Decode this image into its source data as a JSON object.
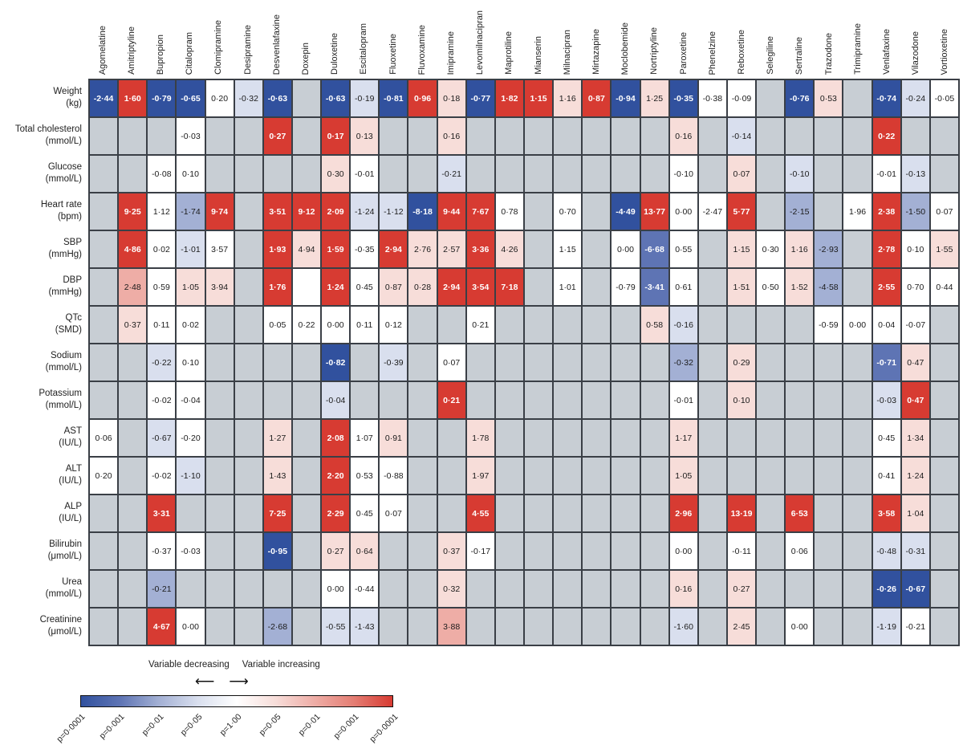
{
  "chart_data": {
    "type": "heatmap",
    "title": "",
    "columns": [
      "Agomelatine",
      "Amitriptyline",
      "Bupropion",
      "Citalopram",
      "Clomipramine",
      "Desipramine",
      "Desvenlafaxine",
      "Doxepin",
      "Duloxetine",
      "Escitalopram",
      "Fluoxetine",
      "Fluvoxamine",
      "Imipramine",
      "Levomilnacipran",
      "Maprotiline",
      "Mianserin",
      "Milnacipran",
      "Mirtazapine",
      "Moclobemide",
      "Nortriptyline",
      "Paroxetine",
      "Phenelzine",
      "Reboxetine",
      "Selegiline",
      "Sertraline",
      "Trazodone",
      "Trimipramine",
      "Venlafaxine",
      "Vilazodone",
      "Vortioxetine"
    ],
    "rows": [
      {
        "label": "Weight",
        "unit": "(kg)",
        "cells": [
          [
            "-2·44",
            -4
          ],
          [
            "1·60",
            4
          ],
          [
            "-0·79",
            -4
          ],
          [
            "-0·65",
            -4
          ],
          [
            "0·20",
            0
          ],
          [
            "-0·32",
            -1
          ],
          [
            "-0·63",
            -4
          ],
          null,
          [
            "-0·63",
            -4
          ],
          [
            "-0·19",
            -1
          ],
          [
            "-0·81",
            -4
          ],
          [
            "0·96",
            4
          ],
          [
            "0·18",
            1
          ],
          [
            "-0·77",
            -4
          ],
          [
            "1·82",
            4
          ],
          [
            "1·15",
            4
          ],
          [
            "1·16",
            1
          ],
          [
            "0·87",
            4
          ],
          [
            "-0·94",
            -4
          ],
          [
            "1·25",
            1
          ],
          [
            "-0·35",
            -4
          ],
          [
            "-0·38",
            0
          ],
          [
            "-0·09",
            0
          ],
          null,
          [
            "-0·76",
            -4
          ],
          [
            "0·53",
            1
          ],
          null,
          [
            "-0·74",
            -4
          ],
          [
            "-0·24",
            -1
          ],
          [
            "-0·05",
            0
          ]
        ]
      },
      {
        "label": "Total cholesterol",
        "unit": "(mmol/L)",
        "cells": [
          null,
          null,
          null,
          [
            "-0·03",
            0
          ],
          null,
          null,
          [
            "0·27",
            4
          ],
          null,
          [
            "0·17",
            4
          ],
          [
            "0·13",
            1
          ],
          null,
          null,
          [
            "0·16",
            1
          ],
          null,
          null,
          null,
          null,
          null,
          null,
          null,
          [
            "0·16",
            1
          ],
          null,
          [
            "-0·14",
            -1
          ],
          null,
          null,
          null,
          null,
          [
            "0·22",
            4
          ],
          null,
          null
        ]
      },
      {
        "label": "Glucose",
        "unit": "(mmol/L)",
        "cells": [
          null,
          null,
          [
            "-0·08",
            0
          ],
          [
            "0·10",
            0
          ],
          null,
          null,
          null,
          null,
          [
            "0·30",
            1
          ],
          [
            "-0·01",
            0
          ],
          null,
          null,
          [
            "-0·21",
            -1
          ],
          null,
          null,
          null,
          null,
          null,
          null,
          null,
          [
            "-0·10",
            0
          ],
          null,
          [
            "0·07",
            1
          ],
          null,
          [
            "-0·10",
            -1
          ],
          null,
          null,
          [
            "-0·01",
            0
          ],
          [
            "-0·13",
            -1
          ],
          null
        ]
      },
      {
        "label": "Heart rate",
        "unit": "(bpm)",
        "cells": [
          null,
          [
            "9·25",
            4
          ],
          [
            "1·12",
            0
          ],
          [
            "-1·74",
            -2
          ],
          [
            "9·74",
            4
          ],
          null,
          [
            "3·51",
            4
          ],
          [
            "9·12",
            4
          ],
          [
            "2·09",
            4
          ],
          [
            "-1·24",
            -1
          ],
          [
            "-1·12",
            -1
          ],
          [
            "-8·18",
            -4
          ],
          [
            "9·44",
            4
          ],
          [
            "7·67",
            4
          ],
          [
            "0·78",
            0
          ],
          null,
          [
            "0·70",
            0
          ],
          null,
          [
            "-4·49",
            -4
          ],
          [
            "13·77",
            4
          ],
          [
            "0·00",
            0
          ],
          [
            "-2·47",
            0
          ],
          [
            "5·77",
            4
          ],
          null,
          [
            "-2·15",
            -2
          ],
          null,
          [
            "1·96",
            0
          ],
          [
            "2·38",
            4
          ],
          [
            "-1·50",
            -2
          ],
          [
            "0·07",
            0
          ]
        ]
      },
      {
        "label": "SBP",
        "unit": "(mmHg)",
        "cells": [
          null,
          [
            "4·86",
            4
          ],
          [
            "0·02",
            0
          ],
          [
            "-1·01",
            -1
          ],
          [
            "3·57",
            0
          ],
          null,
          [
            "1·93",
            4
          ],
          [
            "4·94",
            1
          ],
          [
            "1·59",
            4
          ],
          [
            "-0·35",
            0
          ],
          [
            "2·94",
            4
          ],
          [
            "2·76",
            1
          ],
          [
            "2·57",
            1
          ],
          [
            "3·36",
            4
          ],
          [
            "4·26",
            1
          ],
          null,
          [
            "1·15",
            0
          ],
          null,
          [
            "0·00",
            0
          ],
          [
            "-6·68",
            -3
          ],
          [
            "0·55",
            0
          ],
          null,
          [
            "1·15",
            1
          ],
          [
            "0·30",
            0
          ],
          [
            "1·16",
            1
          ],
          [
            "-2·93",
            -2
          ],
          null,
          [
            "2·78",
            4
          ],
          [
            "0·10",
            0
          ],
          [
            "1·55",
            1
          ]
        ]
      },
      {
        "label": "DBP",
        "unit": "(mmHg)",
        "cells": [
          null,
          [
            "2·48",
            2
          ],
          [
            "0·59",
            0
          ],
          [
            "1·05",
            1
          ],
          [
            "3·94",
            1
          ],
          null,
          [
            "1·76",
            4
          ],
          [
            "",
            0
          ],
          [
            "1·24",
            4
          ],
          [
            "0·45",
            0
          ],
          [
            "0·87",
            1
          ],
          [
            "0·28",
            1
          ],
          [
            "2·94",
            4
          ],
          [
            "3·54",
            4
          ],
          [
            "7·18",
            4
          ],
          null,
          [
            "1·01",
            0
          ],
          null,
          [
            "-0·79",
            0
          ],
          [
            "-3·41",
            -3
          ],
          [
            "0·61",
            0
          ],
          null,
          [
            "1·51",
            1
          ],
          [
            "0·50",
            0
          ],
          [
            "1·52",
            1
          ],
          [
            "-4·58",
            -2
          ],
          null,
          [
            "2·55",
            4
          ],
          [
            "0·70",
            0
          ],
          [
            "0·44",
            0
          ]
        ]
      },
      {
        "label": "QTc",
        "unit": "(SMD)",
        "cells": [
          null,
          [
            "0·37",
            1
          ],
          [
            "0·11",
            0
          ],
          [
            "0·02",
            0
          ],
          null,
          null,
          [
            "0·05",
            0
          ],
          [
            "0·22",
            0
          ],
          [
            "0·00",
            0
          ],
          [
            "0·11",
            0
          ],
          [
            "0·12",
            0
          ],
          null,
          null,
          [
            "0·21",
            0
          ],
          null,
          null,
          null,
          null,
          null,
          [
            "0·58",
            1
          ],
          [
            "-0·16",
            -1
          ],
          null,
          null,
          null,
          null,
          [
            "-0·59",
            0
          ],
          [
            "0·00",
            0
          ],
          [
            "0·04",
            0
          ],
          [
            "-0·07",
            0
          ],
          null
        ]
      },
      {
        "label": "Sodium",
        "unit": "(mmol/L)",
        "cells": [
          null,
          null,
          [
            "-0·22",
            -1
          ],
          [
            "0·10",
            0
          ],
          null,
          null,
          null,
          null,
          [
            "-0·82",
            -4
          ],
          null,
          [
            "-0·39",
            -1
          ],
          null,
          [
            "0·07",
            0
          ],
          null,
          null,
          null,
          null,
          null,
          null,
          null,
          [
            "-0·32",
            -2
          ],
          null,
          [
            "0·29",
            1
          ],
          null,
          null,
          null,
          null,
          [
            "-0·71",
            -3
          ],
          [
            "0·47",
            1
          ],
          null
        ]
      },
      {
        "label": "Potassium",
        "unit": "(mmol/L)",
        "cells": [
          null,
          null,
          [
            "-0·02",
            0
          ],
          [
            "-0·04",
            0
          ],
          null,
          null,
          null,
          null,
          [
            "-0·04",
            -1
          ],
          null,
          null,
          null,
          [
            "0·21",
            4
          ],
          null,
          null,
          null,
          null,
          null,
          null,
          null,
          [
            "-0·01",
            0
          ],
          null,
          [
            "0·10",
            1
          ],
          null,
          null,
          null,
          null,
          [
            "-0·03",
            -1
          ],
          [
            "0·47",
            4
          ],
          null
        ]
      },
      {
        "label": "AST",
        "unit": "(IU/L)",
        "cells": [
          [
            "0·06",
            0
          ],
          null,
          [
            "-0·67",
            -1
          ],
          [
            "-0·20",
            0
          ],
          null,
          null,
          [
            "1·27",
            1
          ],
          null,
          [
            "2·08",
            4
          ],
          [
            "1·07",
            0
          ],
          [
            "0·91",
            1
          ],
          null,
          null,
          [
            "1·78",
            1
          ],
          null,
          null,
          null,
          null,
          null,
          null,
          [
            "1·17",
            1
          ],
          null,
          null,
          null,
          null,
          null,
          null,
          [
            "0·45",
            0
          ],
          [
            "1·34",
            1
          ],
          null
        ]
      },
      {
        "label": "ALT",
        "unit": "(IU/L)",
        "cells": [
          [
            "0·20",
            0
          ],
          null,
          [
            "-0·02",
            0
          ],
          [
            "-1·10",
            -1
          ],
          null,
          null,
          [
            "1·43",
            1
          ],
          null,
          [
            "2·20",
            4
          ],
          [
            "0·53",
            0
          ],
          [
            "-0·88",
            0
          ],
          null,
          null,
          [
            "1·97",
            1
          ],
          null,
          null,
          null,
          null,
          null,
          null,
          [
            "1·05",
            1
          ],
          null,
          null,
          null,
          null,
          null,
          null,
          [
            "0·41",
            0
          ],
          [
            "1·24",
            1
          ],
          null
        ]
      },
      {
        "label": "ALP",
        "unit": "(IU/L)",
        "cells": [
          null,
          null,
          [
            "3·31",
            4
          ],
          null,
          null,
          null,
          [
            "7·25",
            4
          ],
          null,
          [
            "2·29",
            4
          ],
          [
            "0·45",
            0
          ],
          [
            "0·07",
            0
          ],
          null,
          null,
          [
            "4·55",
            4
          ],
          null,
          null,
          null,
          null,
          null,
          null,
          [
            "2·96",
            4
          ],
          null,
          [
            "13·19",
            4
          ],
          null,
          [
            "6·53",
            4
          ],
          null,
          null,
          [
            "3·58",
            4
          ],
          [
            "1·04",
            1
          ],
          null
        ]
      },
      {
        "label": "Bilirubin",
        "unit": "(μmol/L)",
        "cells": [
          null,
          null,
          [
            "-0·37",
            0
          ],
          [
            "-0·03",
            0
          ],
          null,
          null,
          [
            "-0·95",
            -4
          ],
          null,
          [
            "0·27",
            1
          ],
          [
            "0·64",
            1
          ],
          null,
          null,
          [
            "0·37",
            1
          ],
          [
            "-0·17",
            0
          ],
          null,
          null,
          null,
          null,
          null,
          null,
          [
            "0·00",
            0
          ],
          null,
          [
            "-0·11",
            0
          ],
          null,
          [
            "0·06",
            0
          ],
          null,
          null,
          [
            "-0·48",
            -1
          ],
          [
            "-0·31",
            -1
          ],
          null
        ]
      },
      {
        "label": "Urea",
        "unit": "(mmol/L)",
        "cells": [
          null,
          null,
          [
            "-0·21",
            -2
          ],
          null,
          null,
          null,
          null,
          null,
          [
            "0·00",
            0
          ],
          [
            "-0·44",
            0
          ],
          null,
          null,
          [
            "0·32",
            1
          ],
          null,
          null,
          null,
          null,
          null,
          null,
          null,
          [
            "0·16",
            1
          ],
          null,
          [
            "0·27",
            1
          ],
          null,
          null,
          null,
          null,
          [
            "-0·26",
            -4
          ],
          [
            "-0·67",
            -4
          ],
          null
        ]
      },
      {
        "label": "Creatinine",
        "unit": "(μmol/L)",
        "cells": [
          null,
          null,
          [
            "4·67",
            4
          ],
          [
            "0·00",
            0
          ],
          null,
          null,
          [
            "-2·68",
            -2
          ],
          null,
          [
            "-0·55",
            -1
          ],
          [
            "-1·43",
            -1
          ],
          null,
          null,
          [
            "3·88",
            2
          ],
          null,
          null,
          null,
          null,
          null,
          null,
          null,
          [
            "-1·60",
            -1
          ],
          null,
          [
            "2·45",
            1
          ],
          null,
          [
            "0·00",
            0
          ],
          null,
          null,
          [
            "-1·19",
            -1
          ],
          [
            "-0·21",
            0
          ],
          null
        ]
      }
    ],
    "legend": {
      "decreasing_label": "Variable decreasing",
      "increasing_label": "Variable increasing",
      "decreasing_arrow": "⟵",
      "increasing_arrow": "⟶",
      "p_labels": [
        "p=0·0001",
        "p=0·001",
        "p=0·01",
        "p=0·05",
        "p=1·00",
        "p=0·05",
        "p=0·01",
        "p=0·001",
        "p=0·0001"
      ]
    },
    "palette": {
      "-4": "#31519e",
      "-3": "#5e74b4",
      "-2": "#a3b0d4",
      "-1": "#d9dfee",
      "0": "#ffffff",
      "1": "#f7ddd9",
      "2": "#eeada6",
      "3": "#e47e74",
      "4": "#d73b32"
    },
    "empty_color": "#c8ced4",
    "grid_border_color": "#3a3f46"
  }
}
